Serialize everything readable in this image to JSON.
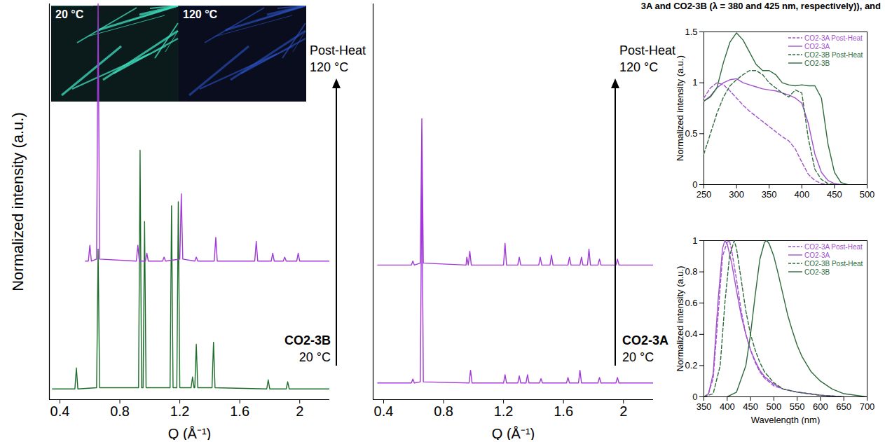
{
  "caption_fragment": "3A and CO2-3B (λ = 380 and 425 nm, respectively)), and",
  "chart_data": [
    {
      "type": "line",
      "xlabel": "Q (Å⁻¹)",
      "ylabel": "Normalized intensity (a.u.)",
      "xlim": [
        0.33,
        2.2
      ],
      "xticks": [
        0.4,
        0.8,
        1.2,
        1.6,
        2
      ],
      "ylim": [
        0,
        1
      ],
      "tick_labels": "x",
      "inset_labels": [
        "20 °C",
        "120 °C"
      ],
      "annotations": {
        "top": [
          "Post-Heat",
          "120 °C"
        ],
        "bottom": [
          "CO2-3B",
          "20 °C"
        ]
      },
      "series": [
        {
          "color": "#1e6e2b",
          "line_style": "solid",
          "x": [
            0.35,
            0.5,
            0.51,
            0.52,
            0.645,
            0.655,
            0.665,
            0.925,
            0.935,
            0.945,
            0.955,
            0.965,
            0.975,
            1.135,
            1.145,
            1.155,
            1.18,
            1.19,
            1.2,
            1.275,
            1.285,
            1.295,
            1.3,
            1.31,
            1.32,
            1.415,
            1.425,
            1.435,
            1.78,
            1.79,
            1.8,
            1.91,
            1.92,
            1.93,
            2.2
          ],
          "values": [
            0.027,
            0.027,
            0.08,
            0.027,
            0.03,
            0.38,
            0.03,
            0.03,
            0.63,
            0.03,
            0.03,
            0.45,
            0.03,
            0.03,
            0.49,
            0.03,
            0.03,
            0.5,
            0.03,
            0.03,
            0.057,
            0.03,
            0.03,
            0.14,
            0.03,
            0.03,
            0.145,
            0.03,
            0.027,
            0.05,
            0.027,
            0.027,
            0.045,
            0.027,
            0.027
          ]
        },
        {
          "color": "#a238d8",
          "line_style": "solid",
          "x": [
            0.57,
            0.59,
            0.6,
            0.61,
            0.645,
            0.655,
            0.665,
            0.91,
            0.92,
            0.93,
            0.97,
            0.98,
            0.99,
            1.085,
            1.095,
            1.105,
            1.2,
            1.21,
            1.22,
            1.3,
            1.31,
            1.32,
            1.43,
            1.44,
            1.45,
            1.7,
            1.71,
            1.72,
            1.81,
            1.82,
            1.83,
            1.89,
            1.9,
            1.91,
            1.98,
            1.99,
            2.0,
            2.2
          ],
          "values": [
            0.35,
            0.35,
            0.39,
            0.35,
            0.355,
            1.0,
            0.355,
            0.35,
            0.39,
            0.35,
            0.35,
            0.37,
            0.35,
            0.35,
            0.36,
            0.35,
            0.355,
            0.52,
            0.355,
            0.35,
            0.36,
            0.35,
            0.35,
            0.41,
            0.35,
            0.35,
            0.4,
            0.35,
            0.35,
            0.37,
            0.35,
            0.35,
            0.36,
            0.35,
            0.35,
            0.37,
            0.35,
            0.35
          ]
        }
      ]
    },
    {
      "type": "line",
      "xlabel": "Q (Å⁻¹)",
      "xlim": [
        0.33,
        2.2
      ],
      "xticks": [
        0.4,
        0.8,
        1.2,
        1.6,
        2
      ],
      "ylim": [
        0,
        1
      ],
      "tick_labels": "x",
      "annotations": {
        "top": [
          "Post-Heat",
          "120 °C"
        ],
        "bottom": [
          "CO2-3A",
          "20 °C"
        ]
      },
      "series": [
        {
          "color": "#a238d8",
          "line_style": "solid",
          "x": [
            0.36,
            0.585,
            0.595,
            0.605,
            0.645,
            0.655,
            0.665,
            0.97,
            0.98,
            0.99,
            1.2,
            1.21,
            1.22,
            1.295,
            1.305,
            1.315,
            1.35,
            1.36,
            1.37,
            1.44,
            1.45,
            1.46,
            1.62,
            1.63,
            1.64,
            1.7,
            1.71,
            1.72,
            1.83,
            1.84,
            1.85,
            1.95,
            1.96,
            1.97,
            2.2
          ],
          "values": [
            0.042,
            0.042,
            0.052,
            0.042,
            0.045,
            0.58,
            0.045,
            0.042,
            0.074,
            0.042,
            0.042,
            0.063,
            0.042,
            0.042,
            0.06,
            0.042,
            0.042,
            0.063,
            0.042,
            0.042,
            0.053,
            0.042,
            0.042,
            0.056,
            0.042,
            0.042,
            0.074,
            0.042,
            0.042,
            0.056,
            0.042,
            0.042,
            0.056,
            0.042,
            0.042
          ]
        },
        {
          "color": "#a238d8",
          "line_style": "solid",
          "x": [
            0.36,
            0.585,
            0.595,
            0.605,
            0.645,
            0.655,
            0.665,
            0.95,
            0.955,
            0.965,
            0.975,
            0.985,
            1.2,
            1.21,
            1.22,
            1.295,
            1.305,
            1.315,
            1.435,
            1.445,
            1.455,
            1.51,
            1.52,
            1.53,
            1.63,
            1.64,
            1.65,
            1.71,
            1.72,
            1.73,
            1.76,
            1.77,
            1.78,
            1.83,
            1.84,
            1.85,
            1.95,
            1.96,
            1.97,
            2.2
          ],
          "values": [
            0.34,
            0.34,
            0.35,
            0.34,
            0.345,
            0.71,
            0.345,
            0.34,
            0.36,
            0.34,
            0.375,
            0.34,
            0.34,
            0.395,
            0.34,
            0.34,
            0.36,
            0.34,
            0.34,
            0.36,
            0.34,
            0.34,
            0.365,
            0.34,
            0.34,
            0.36,
            0.34,
            0.34,
            0.36,
            0.34,
            0.34,
            0.38,
            0.34,
            0.34,
            0.355,
            0.34,
            0.34,
            0.355,
            0.34,
            0.34
          ]
        }
      ]
    },
    {
      "type": "line",
      "ylabel": "Normalized intensity (a.u.)",
      "xlim": [
        250,
        500
      ],
      "xticks": [
        250,
        300,
        350,
        400,
        450,
        500
      ],
      "ylim": [
        0,
        1.5
      ],
      "yticks": [
        0,
        0.5,
        1,
        1.5
      ],
      "legend": "top-right",
      "series": [
        {
          "name": "CO2-3A Post-Heat",
          "color": "#a052cc",
          "line_style": "dashed",
          "x": [
            250,
            260,
            270,
            280,
            290,
            300,
            310,
            320,
            330,
            340,
            350,
            360,
            370,
            380,
            390,
            400,
            410,
            420,
            430,
            440
          ],
          "values": [
            0.85,
            0.95,
            1.0,
            0.98,
            0.92,
            0.85,
            0.78,
            0.72,
            0.67,
            0.62,
            0.57,
            0.52,
            0.47,
            0.43,
            0.35,
            0.22,
            0.1,
            0.04,
            0.01,
            0
          ]
        },
        {
          "name": "CO2-3A",
          "color": "#a052cc",
          "line_style": "solid",
          "x": [
            250,
            260,
            270,
            280,
            290,
            300,
            310,
            320,
            330,
            340,
            350,
            360,
            370,
            380,
            390,
            400,
            410,
            420,
            430,
            440,
            450,
            460
          ],
          "values": [
            0.82,
            0.87,
            0.95,
            1.0,
            1.03,
            1.04,
            1.0,
            0.98,
            0.96,
            0.94,
            0.93,
            0.92,
            0.9,
            0.88,
            0.85,
            0.8,
            0.6,
            0.3,
            0.12,
            0.04,
            0.01,
            0
          ]
        },
        {
          "name": "CO2-3B Post-Heat",
          "color": "#2d6b3c",
          "line_style": "dashed",
          "x": [
            250,
            260,
            270,
            280,
            290,
            300,
            310,
            320,
            330,
            340,
            350,
            360,
            370,
            380,
            390,
            400,
            410,
            420,
            430,
            440,
            450
          ],
          "values": [
            0.3,
            0.5,
            0.7,
            0.86,
            0.97,
            1.03,
            1.08,
            1.12,
            1.12,
            1.08,
            1.0,
            0.95,
            0.9,
            0.86,
            0.93,
            0.9,
            0.45,
            0.15,
            0.05,
            0.01,
            0
          ]
        },
        {
          "name": "CO2-3B",
          "color": "#2d6b3c",
          "line_style": "solid",
          "x": [
            250,
            260,
            270,
            280,
            290,
            300,
            310,
            320,
            330,
            340,
            350,
            360,
            370,
            380,
            390,
            400,
            410,
            420,
            430,
            440,
            450,
            460,
            470
          ],
          "values": [
            0.82,
            0.86,
            0.95,
            1.2,
            1.4,
            1.49,
            1.42,
            1.3,
            1.18,
            1.12,
            1.12,
            1.08,
            1.0,
            0.98,
            0.97,
            0.98,
            0.97,
            0.97,
            0.85,
            0.4,
            0.12,
            0.02,
            0
          ]
        }
      ]
    },
    {
      "type": "line",
      "xlabel": "Wavelength (nm)",
      "ylabel": "Normalized intensity (a.u.)",
      "xlim": [
        350,
        700
      ],
      "xticks": [
        350,
        400,
        450,
        500,
        550,
        600,
        650,
        700
      ],
      "ylim": [
        0,
        1
      ],
      "yticks": [
        0,
        0.2,
        0.4,
        0.6,
        0.8,
        1
      ],
      "legend": "top-right",
      "series": [
        {
          "name": "CO2-3A Post-Heat",
          "color": "#a052cc",
          "line_style": "dashed",
          "x": [
            350,
            360,
            370,
            380,
            390,
            400,
            405,
            410,
            420,
            430,
            440,
            450,
            460,
            470,
            480,
            500,
            520,
            550,
            600,
            650
          ],
          "values": [
            0,
            0.02,
            0.12,
            0.5,
            0.9,
            0.99,
            1.0,
            0.93,
            0.75,
            0.55,
            0.4,
            0.3,
            0.22,
            0.16,
            0.12,
            0.07,
            0.05,
            0.03,
            0.01,
            0
          ]
        },
        {
          "name": "CO2-3A",
          "color": "#a052cc",
          "line_style": "solid",
          "x": [
            350,
            360,
            370,
            380,
            390,
            395,
            400,
            410,
            420,
            430,
            440,
            450,
            460,
            470,
            480,
            500,
            520,
            550,
            600,
            650
          ],
          "values": [
            0,
            0.02,
            0.15,
            0.6,
            0.95,
            1.0,
            0.98,
            0.85,
            0.68,
            0.52,
            0.4,
            0.3,
            0.23,
            0.17,
            0.13,
            0.08,
            0.05,
            0.03,
            0.01,
            0
          ]
        },
        {
          "name": "CO2-3B Post-Heat",
          "color": "#2d6b3c",
          "line_style": "dashed",
          "x": [
            350,
            370,
            385,
            395,
            405,
            415,
            420,
            430,
            440,
            450,
            460,
            470,
            480,
            500,
            520,
            550,
            600,
            650
          ],
          "values": [
            0,
            0.02,
            0.2,
            0.6,
            0.9,
            1.0,
            0.95,
            0.75,
            0.55,
            0.4,
            0.3,
            0.22,
            0.16,
            0.09,
            0.05,
            0.03,
            0.01,
            0
          ]
        },
        {
          "name": "CO2-3B",
          "color": "#2d6b3c",
          "line_style": "solid",
          "x": [
            400,
            420,
            440,
            450,
            460,
            470,
            480,
            485,
            490,
            500,
            510,
            520,
            530,
            540,
            550,
            560,
            580,
            600,
            625,
            650,
            700
          ],
          "values": [
            0,
            0.03,
            0.2,
            0.4,
            0.65,
            0.88,
            0.99,
            1.0,
            0.98,
            0.9,
            0.78,
            0.65,
            0.52,
            0.42,
            0.33,
            0.26,
            0.16,
            0.1,
            0.05,
            0.02,
            0
          ]
        }
      ]
    }
  ]
}
